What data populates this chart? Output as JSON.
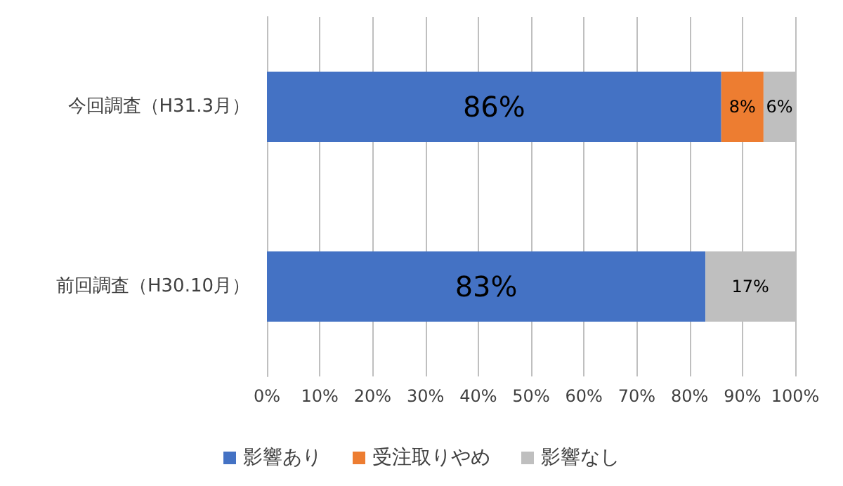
{
  "chart_data": {
    "type": "bar",
    "orientation": "horizontal",
    "stacked": true,
    "categories": [
      "今回調査（H31.3月）",
      "前回調査（H30.10月）"
    ],
    "series": [
      {
        "name": "影響あり",
        "color": "#4472c4",
        "values": [
          86,
          83
        ],
        "value_labels": [
          "86%",
          "83%"
        ]
      },
      {
        "name": "受注取りやめ",
        "color": "#ed7d31",
        "values": [
          8,
          null
        ],
        "value_labels": [
          "8%",
          null
        ]
      },
      {
        "name": "影響なし",
        "color": "#bfbfbf",
        "values": [
          6,
          17
        ],
        "value_labels": [
          "6%",
          "17%"
        ]
      }
    ],
    "xlim": [
      0,
      100
    ],
    "xticks": [
      {
        "value": 0,
        "label": "0%"
      },
      {
        "value": 10,
        "label": "10%"
      },
      {
        "value": 20,
        "label": "20%"
      },
      {
        "value": 30,
        "label": "30%"
      },
      {
        "value": 40,
        "label": "40%"
      },
      {
        "value": 50,
        "label": "50%"
      },
      {
        "value": 60,
        "label": "60%"
      },
      {
        "value": 70,
        "label": "70%"
      },
      {
        "value": 80,
        "label": "80%"
      },
      {
        "value": 90,
        "label": "90%"
      },
      {
        "value": 100,
        "label": "100%"
      }
    ],
    "grid": "x",
    "legend": "bottom"
  }
}
